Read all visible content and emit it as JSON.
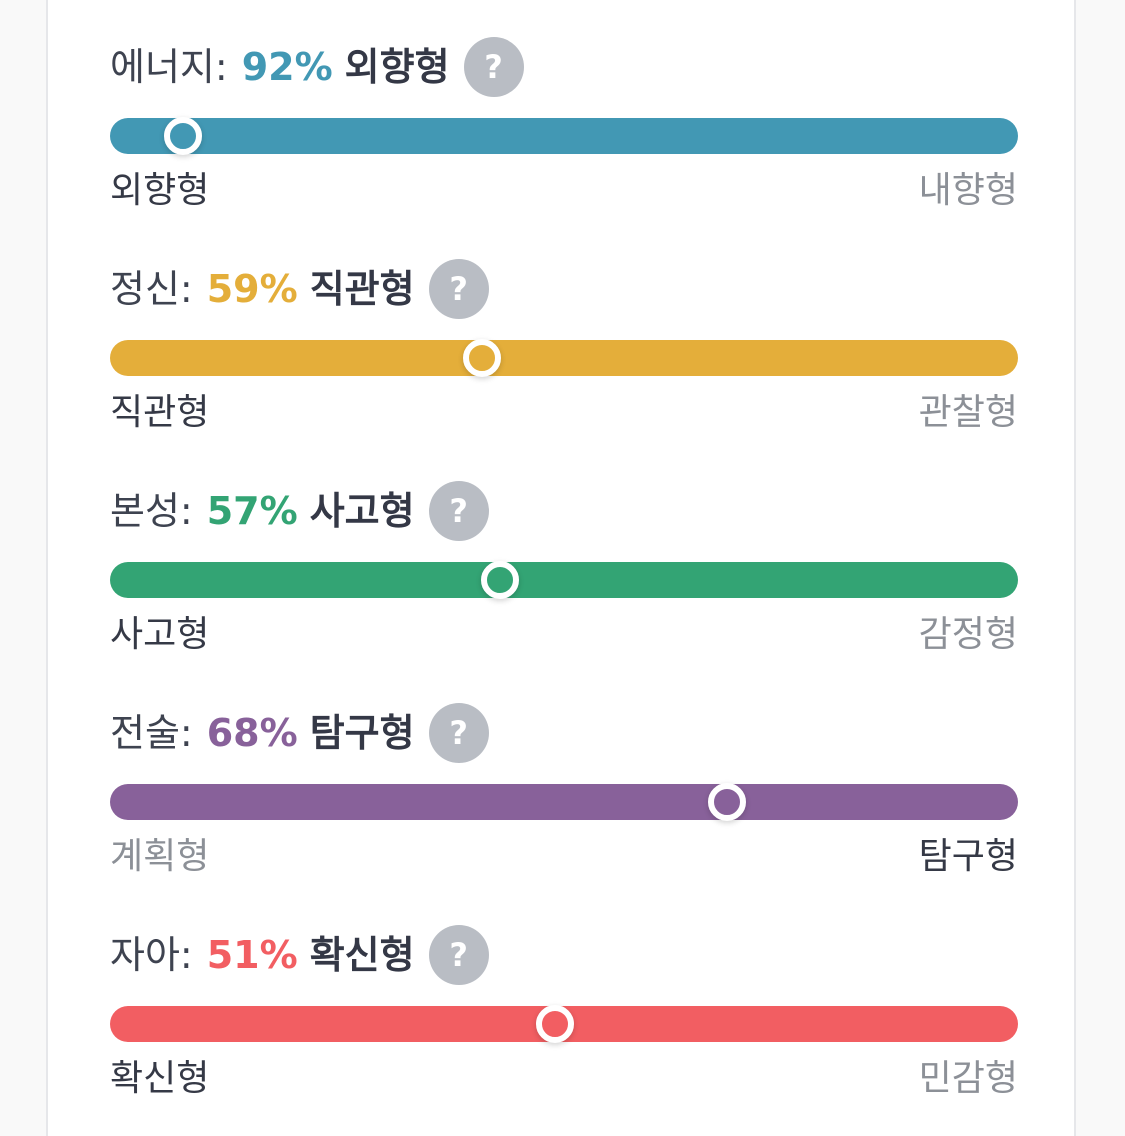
{
  "traits": [
    {
      "name": "에너지:",
      "percent_label": "92%",
      "result": "외향형",
      "help": "?",
      "color": "#4298b4",
      "value": 0.92,
      "left_label": "외향형",
      "right_label": "내향형",
      "dominant_side": "left"
    },
    {
      "name": "정신:",
      "percent_label": "59%",
      "result": "직관형",
      "help": "?",
      "color": "#e4ae3a",
      "value": 0.59,
      "left_label": "직관형",
      "right_label": "관찰형",
      "dominant_side": "left"
    },
    {
      "name": "본성:",
      "percent_label": "57%",
      "result": "사고형",
      "help": "?",
      "color": "#33a474",
      "value": 0.57,
      "left_label": "사고형",
      "right_label": "감정형",
      "dominant_side": "left"
    },
    {
      "name": "전술:",
      "percent_label": "68%",
      "result": "탐구형",
      "help": "?",
      "color": "#88619a",
      "value": 0.68,
      "left_label": "계획형",
      "right_label": "탐구형",
      "dominant_side": "right"
    },
    {
      "name": "자아:",
      "percent_label": "51%",
      "result": "확신형",
      "help": "?",
      "color": "#f25e62",
      "value": 0.51,
      "left_label": "확신형",
      "right_label": "민감형",
      "dominant_side": "left"
    }
  ]
}
